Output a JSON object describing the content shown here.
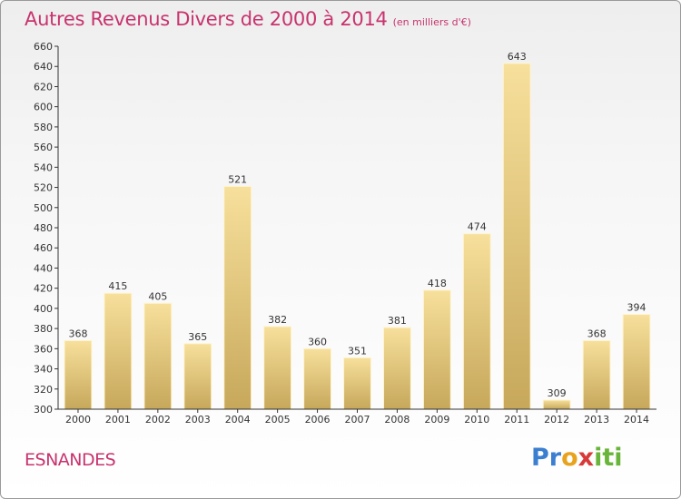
{
  "title": "Autres Revenus Divers de 2000 à 2014",
  "subtitle": "(en milliers d'€)",
  "commune": "ESNANDES",
  "brand": {
    "text": "Proxiti",
    "parts": [
      "Pr",
      "o",
      "x",
      "iti"
    ]
  },
  "colors": {
    "title": "#c8336e",
    "bar_light": "#f6df9a",
    "bar_dark": "#c9a95a",
    "bar_edge": "#fff4cf"
  },
  "chart_data": {
    "type": "bar",
    "title": "Autres Revenus Divers de 2000 à 2014",
    "subtitle": "(en milliers d'€)",
    "xlabel": "",
    "ylabel": "",
    "categories": [
      "2000",
      "2001",
      "2002",
      "2003",
      "2004",
      "2005",
      "2006",
      "2007",
      "2008",
      "2009",
      "2010",
      "2011",
      "2012",
      "2013",
      "2014"
    ],
    "values": [
      368,
      415,
      405,
      365,
      521,
      382,
      360,
      351,
      381,
      418,
      474,
      643,
      309,
      368,
      394
    ],
    "ylim": [
      300,
      660
    ],
    "yticks": [
      300,
      320,
      340,
      360,
      380,
      400,
      420,
      440,
      460,
      480,
      500,
      520,
      540,
      560,
      580,
      600,
      620,
      640,
      660
    ],
    "grid": false,
    "legend": "none"
  }
}
